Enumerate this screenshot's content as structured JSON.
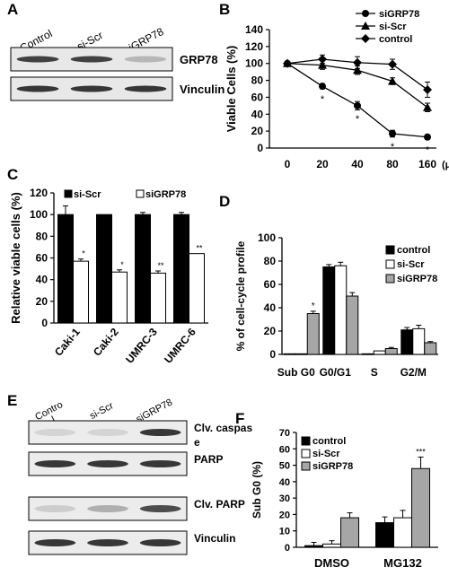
{
  "panel_letters": {
    "A": "A",
    "B": "B",
    "C": "C",
    "D": "D",
    "E": "E",
    "F": "F"
  },
  "blot_A": {
    "lanes": [
      "Control",
      "si-Scr",
      "siGRP78"
    ],
    "rows": [
      {
        "label": "GRP78",
        "intensity": [
          0.85,
          0.85,
          0.25
        ]
      },
      {
        "label": "Vinculin",
        "intensity": [
          0.9,
          0.9,
          0.9
        ]
      }
    ]
  },
  "blot_E": {
    "lanes": [
      "Contro\nl",
      "si-Scr",
      "siGRP78"
    ],
    "rows": [
      {
        "label": "Clv. caspas\ne",
        "intensity": [
          0.12,
          0.12,
          0.9
        ]
      },
      {
        "label": "PARP",
        "intensity": [
          0.9,
          0.9,
          0.9
        ]
      },
      {
        "label": "Clv. PARP",
        "intensity": [
          0.15,
          0.3,
          0.8
        ]
      },
      {
        "label": "Vinculin",
        "intensity": [
          0.9,
          0.9,
          0.9
        ]
      }
    ]
  },
  "chart_data": [
    {
      "id": "B",
      "type": "line",
      "x": [
        0,
        20,
        40,
        80,
        160
      ],
      "xtick_labels": [
        "0",
        "20",
        "40",
        "80",
        "160"
      ],
      "xunit": "(μM)",
      "ylabel": "Viable Cells (%)",
      "ylim": [
        0,
        140
      ],
      "yticks": [
        0,
        20,
        40,
        60,
        80,
        100,
        120,
        140
      ],
      "series": [
        {
          "name": "siGRP78",
          "marker": "circle",
          "values": [
            100,
            73,
            50,
            17,
            13
          ],
          "err": [
            2,
            3,
            5,
            4,
            2
          ]
        },
        {
          "name": "si-Scr",
          "marker": "triangle",
          "values": [
            100,
            98,
            92,
            79,
            48
          ],
          "err": [
            2,
            5,
            5,
            4,
            5
          ]
        },
        {
          "name": "control",
          "marker": "diamond",
          "values": [
            100,
            105,
            101,
            99,
            69
          ],
          "err": [
            2,
            5,
            7,
            6,
            9
          ]
        }
      ],
      "annotations": [
        {
          "x": 20,
          "text": "*"
        },
        {
          "x": 40,
          "text": "*"
        },
        {
          "x": 80,
          "text": "*"
        },
        {
          "x": 160,
          "text": "*"
        }
      ]
    },
    {
      "id": "C",
      "type": "bar",
      "categories": [
        "Caki-1",
        "Caki-2",
        "UMRC-3",
        "UMRC-6"
      ],
      "ylabel": "Relative viable cells (%)",
      "ylim": [
        0,
        120
      ],
      "yticks": [
        0,
        20,
        40,
        60,
        80,
        100,
        120
      ],
      "series": [
        {
          "name": "si-Scr",
          "color": "#000000",
          "values": [
            100,
            100,
            100,
            100
          ],
          "err": [
            8,
            0,
            2,
            2
          ]
        },
        {
          "name": "siGRP78",
          "color": "#ffffff",
          "values": [
            57,
            47,
            46,
            64
          ],
          "err": [
            2,
            2,
            2,
            0
          ]
        }
      ],
      "annotations": [
        "*",
        "*",
        "**",
        "**"
      ]
    },
    {
      "id": "D",
      "type": "bar",
      "categories": [
        "Sub G0",
        "G0/G1",
        "S",
        "G2/M"
      ],
      "ylabel": "% of cell-cycle profile",
      "ylim": [
        0,
        100
      ],
      "yticks": [
        0,
        20,
        40,
        60,
        80,
        100
      ],
      "series": [
        {
          "name": "control",
          "color": "#000000",
          "values": [
            0.5,
            75,
            0.5,
            21
          ],
          "err": [
            0,
            2,
            0,
            2
          ]
        },
        {
          "name": "si-Scr",
          "color": "#ffffff",
          "values": [
            0.5,
            76,
            3,
            22
          ],
          "err": [
            0,
            3,
            0,
            3
          ]
        },
        {
          "name": "siGRP78",
          "color": "#a6a6a6",
          "values": [
            35,
            50,
            5,
            10
          ],
          "err": [
            2,
            3,
            1,
            1
          ]
        }
      ],
      "annotations": [
        {
          "category": "Sub G0",
          "text": "*"
        }
      ]
    },
    {
      "id": "F",
      "type": "bar",
      "categories": [
        "DMSO",
        "MG132"
      ],
      "ylabel": "Sub G0 (%)",
      "ylim": [
        0,
        70
      ],
      "yticks": [
        0,
        10,
        20,
        30,
        40,
        50,
        60,
        70
      ],
      "series": [
        {
          "name": "control",
          "color": "#000000",
          "values": [
            1,
            15
          ],
          "err": [
            2,
            3.5
          ]
        },
        {
          "name": "si-Scr",
          "color": "#ffffff",
          "values": [
            2,
            18
          ],
          "err": [
            2,
            4.5
          ]
        },
        {
          "name": "siGRP78",
          "color": "#a6a6a6",
          "values": [
            18,
            48
          ],
          "err": [
            3,
            7
          ]
        }
      ],
      "annotations": [
        {
          "category": "MG132",
          "text": "***"
        }
      ]
    }
  ]
}
